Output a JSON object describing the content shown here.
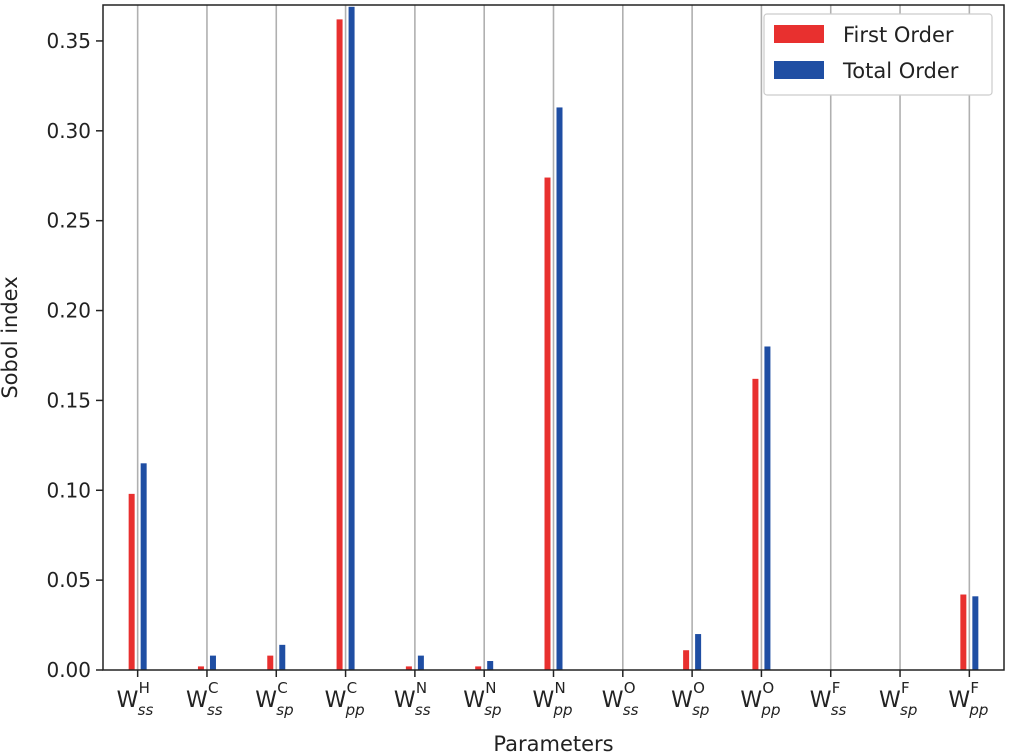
{
  "chart_data": {
    "type": "bar",
    "title": "",
    "xlabel": "Parameters",
    "ylabel": "Sobol index",
    "ylim": [
      0,
      0.37
    ],
    "yticks": [
      "0.00",
      "0.05",
      "0.10",
      "0.15",
      "0.20",
      "0.25",
      "0.30",
      "0.35"
    ],
    "yticks_values": [
      0,
      0.05,
      0.1,
      0.15,
      0.2,
      0.25,
      0.3,
      0.35
    ],
    "grid": "vertical",
    "legend_position": "top-right",
    "categories": [
      {
        "main": "W",
        "sub": "ss",
        "sup": "H"
      },
      {
        "main": "W",
        "sub": "ss",
        "sup": "C"
      },
      {
        "main": "W",
        "sub": "sp",
        "sup": "C"
      },
      {
        "main": "W",
        "sub": "pp",
        "sup": "C"
      },
      {
        "main": "W",
        "sub": "ss",
        "sup": "N"
      },
      {
        "main": "W",
        "sub": "sp",
        "sup": "N"
      },
      {
        "main": "W",
        "sub": "pp",
        "sup": "N"
      },
      {
        "main": "W",
        "sub": "ss",
        "sup": "O"
      },
      {
        "main": "W",
        "sub": "sp",
        "sup": "O"
      },
      {
        "main": "W",
        "sub": "pp",
        "sup": "O"
      },
      {
        "main": "W",
        "sub": "ss",
        "sup": "F"
      },
      {
        "main": "W",
        "sub": "sp",
        "sup": "F"
      },
      {
        "main": "W",
        "sub": "pp",
        "sup": "F"
      }
    ],
    "series": [
      {
        "name": "First Order",
        "color": "#e8302f",
        "values": [
          0.098,
          0.002,
          0.008,
          0.362,
          0.002,
          0.002,
          0.274,
          0.0,
          0.011,
          0.162,
          0.0,
          0.0,
          0.042
        ]
      },
      {
        "name": "Total Order",
        "color": "#1f4ea3",
        "values": [
          0.115,
          0.008,
          0.014,
          0.369,
          0.008,
          0.005,
          0.313,
          0.0,
          0.02,
          0.18,
          0.0,
          0.0,
          0.041
        ]
      }
    ]
  }
}
